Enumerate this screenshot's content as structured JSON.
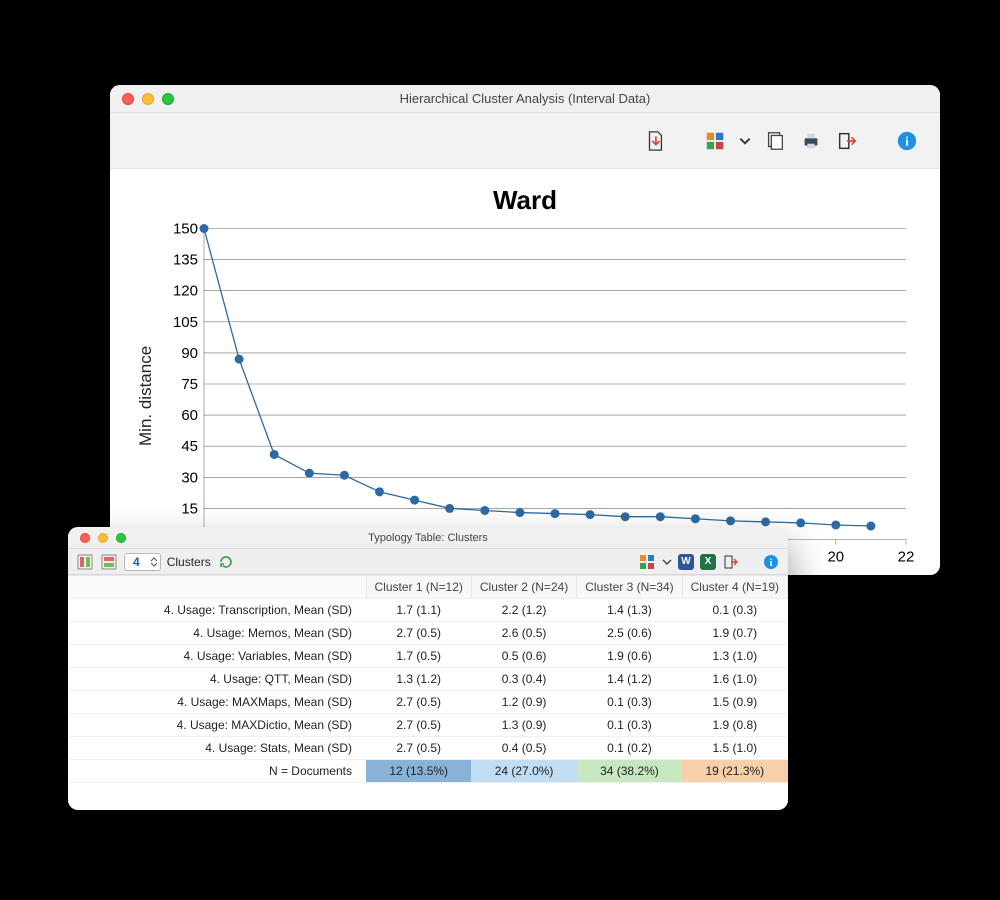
{
  "chart_window": {
    "title": "Hierarchical Cluster Analysis (Interval Data)",
    "toolbar_icons": {
      "export_document": "export-document-icon",
      "puzzle_dropdown": "puzzle-icon",
      "copy": "copy-icon",
      "print": "print-icon",
      "exit": "exit-icon",
      "info": "info-icon"
    },
    "chart": {
      "type": "line",
      "title": "Ward",
      "ylabel": "Min. distance",
      "title_fontsize": 26,
      "label_fontsize": 17,
      "tick_fontsize": 15,
      "x": [
        2,
        3,
        4,
        5,
        6,
        7,
        8,
        9,
        10,
        11,
        12,
        13,
        14,
        15,
        16,
        17,
        18,
        19,
        20,
        21
      ],
      "y": [
        150,
        87,
        41,
        32,
        31,
        23,
        19,
        15,
        14,
        13,
        12.5,
        12,
        11,
        11,
        10,
        9,
        8.5,
        8,
        7,
        6.5
      ],
      "xlim": [
        2,
        22
      ],
      "ylim": [
        0,
        150
      ],
      "xtick_step": 2,
      "ytick_step": 15,
      "line_color": "#2d6aa3",
      "marker_color": "#2d6aa3",
      "marker_radius": 4.5,
      "grid_color": "#000000",
      "grid_opacity": 0.55,
      "background_color": "#ffffff"
    }
  },
  "table_window": {
    "title": "Typology Table: Clusters",
    "cluster_count": "4",
    "cluster_count_label": "Clusters",
    "toolbar_icons": {
      "collapse_a": "panel-collapse-a-icon",
      "collapse_b": "panel-collapse-b-icon",
      "refresh": "refresh-icon",
      "puzzle_dropdown": "puzzle-small-icon",
      "word": "word-icon",
      "excel": "excel-icon",
      "exit": "exit-small-icon",
      "info": "info-small-icon"
    },
    "word_badge_color": "#2b579a",
    "excel_badge_color": "#217346",
    "table": {
      "columns": [
        "",
        "Cluster 1 (N=12)",
        "Cluster 2 (N=24)",
        "Cluster 3 (N=34)",
        "Cluster 4 (N=19)"
      ],
      "rows": [
        [
          "4. Usage: Transcription, Mean (SD)",
          "1.7 (1.1)",
          "2.2 (1.2)",
          "1.4 (1.3)",
          "0.1 (0.3)"
        ],
        [
          "4. Usage: Memos, Mean (SD)",
          "2.7 (0.5)",
          "2.6 (0.5)",
          "2.5 (0.6)",
          "1.9 (0.7)"
        ],
        [
          "4. Usage: Variables, Mean (SD)",
          "1.7 (0.5)",
          "0.5 (0.6)",
          "1.9 (0.6)",
          "1.3 (1.0)"
        ],
        [
          "4. Usage: QTT, Mean (SD)",
          "1.3 (1.2)",
          "0.3 (0.4)",
          "1.4 (1.2)",
          "1.6 (1.0)"
        ],
        [
          "4. Usage: MAXMaps, Mean (SD)",
          "2.7 (0.5)",
          "1.2 (0.9)",
          "0.1 (0.3)",
          "1.5 (0.9)"
        ],
        [
          "4. Usage: MAXDictio, Mean (SD)",
          "2.7 (0.5)",
          "1.3 (0.9)",
          "0.1 (0.3)",
          "1.9 (0.8)"
        ],
        [
          "4. Usage: Stats, Mean (SD)",
          "2.7 (0.5)",
          "0.4 (0.5)",
          "0.1 (0.2)",
          "1.5 (1.0)"
        ]
      ],
      "total_row": {
        "label": "N = Documents",
        "cells": [
          "12 (13.5%)",
          "24 (27.0%)",
          "34 (38.2%)",
          "19 (21.3%)"
        ],
        "cell_colors": [
          "#89b3d6",
          "#c1ddf3",
          "#c6e7c0",
          "#f6d0a9"
        ]
      },
      "col1_width": 320
    }
  }
}
